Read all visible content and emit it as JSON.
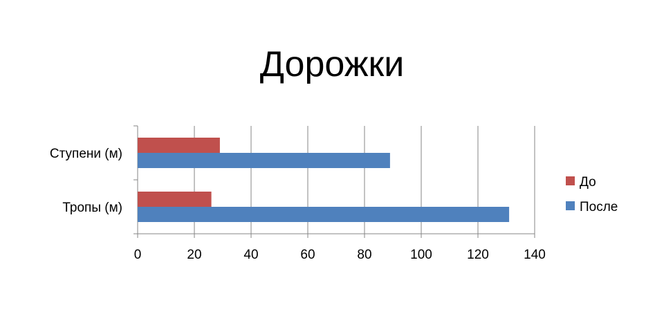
{
  "chart_data": {
    "type": "bar",
    "orientation": "horizontal",
    "title": "Дорожки",
    "categories": [
      "Ступени (м)",
      "Тропы (м)"
    ],
    "series": [
      {
        "name": "До",
        "values": [
          29,
          26
        ],
        "color": "#C0504D"
      },
      {
        "name": "После",
        "values": [
          89,
          131
        ],
        "color": "#4F81BD"
      }
    ],
    "xlim": [
      0,
      140
    ],
    "xticks": [
      "0",
      "20",
      "40",
      "60",
      "80",
      "100",
      "120",
      "140"
    ],
    "grid": true,
    "legend_position": "right"
  }
}
